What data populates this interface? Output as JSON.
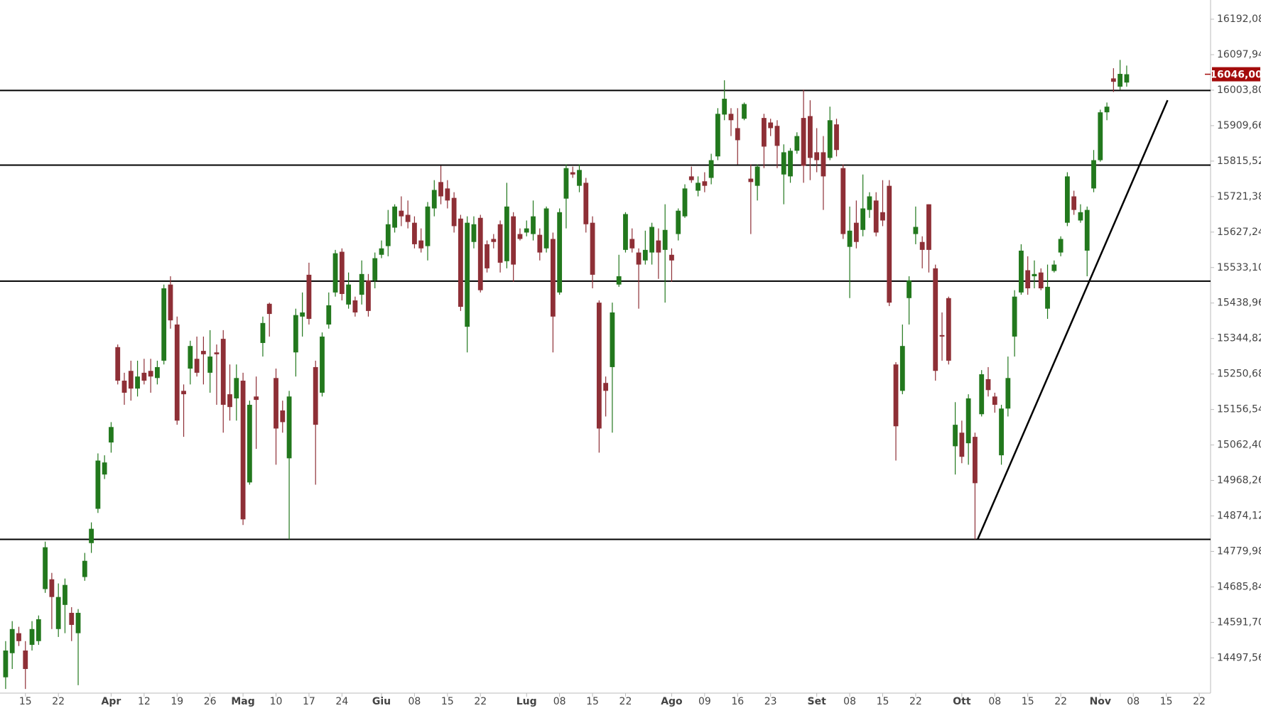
{
  "chart_data": {
    "type": "candlestick",
    "categories": [
      null,
      null,
      null,
      "15",
      null,
      null,
      null,
      null,
      "22",
      null,
      null,
      null,
      null,
      null,
      null,
      null,
      "Apr",
      null,
      null,
      null,
      null,
      "12",
      null,
      null,
      null,
      null,
      "19",
      null,
      null,
      null,
      null,
      "26",
      null,
      null,
      null,
      null,
      "Mag",
      null,
      null,
      null,
      null,
      "10",
      null,
      null,
      null,
      null,
      "17",
      null,
      null,
      null,
      null,
      "24",
      null,
      null,
      null,
      null,
      null,
      "Giu",
      null,
      null,
      null,
      null,
      "08",
      null,
      null,
      null,
      null,
      "15",
      null,
      null,
      null,
      null,
      "22",
      null,
      null,
      null,
      null,
      null,
      null,
      "Lug",
      null,
      null,
      null,
      null,
      "08",
      null,
      null,
      null,
      null,
      "15",
      null,
      null,
      null,
      null,
      "22",
      null,
      null,
      null,
      null,
      null,
      null,
      "Ago",
      null,
      null,
      null,
      null,
      "09",
      null,
      null,
      null,
      null,
      "16",
      null,
      null,
      null,
      null,
      "23",
      null,
      null,
      null,
      null,
      null,
      null,
      "Set",
      null,
      null,
      null,
      null,
      "08",
      null,
      null,
      null,
      null,
      "15",
      null,
      null,
      null,
      null,
      "22",
      null,
      null,
      null,
      null,
      null,
      null,
      "Ott",
      null,
      null,
      null,
      null,
      "08",
      null,
      null,
      null,
      null,
      "15",
      null,
      null,
      null,
      null,
      "22",
      null,
      null,
      null,
      null,
      null,
      "Nov",
      null,
      null,
      null,
      null,
      "08",
      null,
      null,
      null,
      null,
      "15",
      null,
      null,
      null,
      null,
      "22"
    ],
    "open": [
      14446,
      14510,
      14563,
      14517,
      14532,
      14542,
      14680,
      14706,
      14574,
      14638,
      14617,
      14563,
      14712,
      14802,
      14893,
      14984,
      15069,
      15322,
      15233,
      15259,
      15212,
      15254,
      15259,
      15240,
      15286,
      15488,
      15382,
      15206,
      15265,
      15291,
      15312,
      15254,
      15308,
      15344,
      15197,
      15186,
      15233,
      14963,
      15191,
      15333,
      15437,
      15240,
      15154,
      15027,
      15308,
      15403,
      15514,
      15269,
      15201,
      15382,
      15467,
      15575,
      15435,
      15446,
      15461,
      15499,
      15499,
      15567,
      15590,
      15639,
      15684,
      15673,
      15652,
      15605,
      15590,
      15690,
      15760,
      15743,
      15718,
      15663,
      15376,
      15601,
      15665,
      15595,
      15609,
      15648,
      15550,
      15669,
      15622,
      15626,
      15622,
      15620,
      15584,
      15609,
      15467,
      15716,
      15786,
      15750,
      15758,
      15652,
      15440,
      15227,
      15269,
      15488,
      15580,
      15609,
      15573,
      15552,
      15573,
      15605,
      15580,
      15567,
      15622,
      15669,
      15775,
      15737,
      15762,
      15771,
      15828,
      15939,
      15941,
      15903,
      15928,
      15769,
      15750,
      15930,
      15918,
      15909,
      15780,
      15775,
      15843,
      15930,
      15935,
      15839,
      15839,
      15824,
      15913,
      15797,
      15588,
      15652,
      15633,
      15686,
      15711,
      15680,
      15750,
      15276,
      15206,
      15452,
      15622,
      15601,
      15701,
      15531,
      15354,
      15452,
      15059,
      15095,
      15067,
      15084,
      15144,
      15237,
      15191,
      15035,
      15159,
      15350,
      15467,
      15526,
      15510,
      15520,
      15424,
      15524,
      15573,
      15652,
      15722,
      15658,
      15578,
      15743,
      15818,
      15945,
      16035,
      16013,
      16024,
      null,
      null,
      null,
      null,
      null,
      null,
      null,
      null,
      null,
      null,
      null
    ],
    "high": [
      14542,
      14595,
      14580,
      14542,
      14595,
      14610,
      14806,
      14723,
      14695,
      14708,
      14632,
      14627,
      14776,
      14857,
      15040,
      15035,
      15123,
      15329,
      15254,
      15286,
      15286,
      15291,
      15291,
      15286,
      15488,
      15510,
      15403,
      15223,
      15339,
      15350,
      15350,
      15367,
      15329,
      15367,
      15276,
      15276,
      15254,
      15180,
      15244,
      15403,
      15440,
      15265,
      15180,
      15206,
      15424,
      15467,
      15546,
      15286,
      15361,
      15467,
      15580,
      15584,
      15520,
      15456,
      15552,
      15516,
      15573,
      15605,
      15686,
      15701,
      15722,
      15711,
      15669,
      15637,
      15707,
      15765,
      15803,
      15765,
      15733,
      15673,
      15669,
      15669,
      15673,
      15605,
      15622,
      15658,
      15758,
      15680,
      15637,
      15658,
      15711,
      15637,
      15695,
      15626,
      15690,
      15807,
      15801,
      15807,
      15771,
      15669,
      15446,
      15244,
      15440,
      15567,
      15680,
      15637,
      15584,
      15631,
      15652,
      15637,
      15701,
      15584,
      15690,
      15754,
      15801,
      15775,
      15786,
      15835,
      15956,
      16030,
      15956,
      15956,
      15971,
      15807,
      15807,
      15941,
      15928,
      15924,
      15860,
      15850,
      15892,
      16005,
      15977,
      15903,
      15882,
      15960,
      15928,
      15807,
      15695,
      15711,
      15780,
      15733,
      15733,
      15765,
      15765,
      15282,
      15382,
      15510,
      15695,
      15616,
      15701,
      15541,
      15414,
      15456,
      15176,
      15127,
      15197,
      15095,
      15261,
      15269,
      15201,
      15169,
      15297,
      15473,
      15595,
      15563,
      15552,
      15531,
      15541,
      15552,
      15616,
      15786,
      15737,
      15701,
      15695,
      15845,
      15952,
      15971,
      16062,
      16084,
      16069,
      null,
      null,
      null,
      null,
      null,
      null,
      null,
      null,
      null,
      null,
      null
    ],
    "low": [
      14415,
      14468,
      14529,
      14415,
      14517,
      14532,
      14670,
      14574,
      14553,
      14563,
      14542,
      14425,
      14702,
      14776,
      14882,
      14972,
      15042,
      15223,
      15169,
      15180,
      15191,
      15223,
      15201,
      15223,
      15276,
      15371,
      15116,
      15084,
      15223,
      15244,
      15223,
      15201,
      15169,
      15095,
      15127,
      15127,
      14850,
      14957,
      15052,
      15297,
      15350,
      15010,
      15095,
      14812,
      15244,
      15350,
      15382,
      14957,
      15191,
      15371,
      15456,
      15446,
      15424,
      15403,
      15435,
      15403,
      15478,
      15558,
      15563,
      15626,
      15643,
      15637,
      15584,
      15573,
      15552,
      15669,
      15701,
      15690,
      15626,
      15418,
      15308,
      15584,
      15467,
      15520,
      15584,
      15520,
      15531,
      15495,
      15605,
      15616,
      15605,
      15552,
      15573,
      15308,
      15461,
      15637,
      15771,
      15733,
      15626,
      15478,
      15042,
      15138,
      15095,
      15482,
      15573,
      15573,
      15424,
      15541,
      15541,
      15503,
      15440,
      15495,
      15605,
      15665,
      15758,
      15722,
      15733,
      15754,
      15818,
      15924,
      15882,
      15807,
      15924,
      15622,
      15711,
      15797,
      15882,
      15797,
      15701,
      15758,
      15835,
      15758,
      15765,
      15786,
      15686,
      15818,
      15828,
      15609,
      15452,
      15584,
      15616,
      15665,
      15616,
      15643,
      15431,
      15021,
      15197,
      15382,
      15595,
      15531,
      15520,
      15233,
      15286,
      15276,
      14984,
      15014,
      15010,
      14812,
      15138,
      15191,
      15148,
      15010,
      15138,
      15297,
      15461,
      15461,
      15478,
      15473,
      15397,
      15520,
      15563,
      15643,
      15673,
      15652,
      15510,
      15733,
      15814,
      15924,
      15999,
      16005,
      16013,
      null,
      null,
      null,
      null,
      null,
      null,
      null,
      null,
      null,
      null,
      null
    ],
    "close": [
      14517,
      14574,
      14542,
      14468,
      14574,
      14600,
      14791,
      14659,
      14659,
      14691,
      14585,
      14617,
      14755,
      14840,
      15021,
      15016,
      15110,
      15233,
      15201,
      15212,
      15244,
      15233,
      15244,
      15269,
      15478,
      15393,
      15127,
      15197,
      15325,
      15254,
      15303,
      15297,
      15303,
      15169,
      15163,
      15240,
      14865,
      15169,
      15182,
      15386,
      15410,
      15106,
      15123,
      15191,
      15407,
      15414,
      15397,
      15116,
      15350,
      15433,
      15571,
      15463,
      15488,
      15414,
      15516,
      15418,
      15558,
      15584,
      15648,
      15695,
      15669,
      15654,
      15595,
      15584,
      15695,
      15739,
      15722,
      15711,
      15643,
      15429,
      15652,
      15648,
      15473,
      15531,
      15601,
      15546,
      15695,
      15541,
      15609,
      15637,
      15669,
      15573,
      15690,
      15403,
      15680,
      15797,
      15780,
      15792,
      15648,
      15514,
      15106,
      15206,
      15414,
      15510,
      15675,
      15584,
      15541,
      15580,
      15641,
      15573,
      15633,
      15552,
      15684,
      15743,
      15765,
      15758,
      15750,
      15818,
      15941,
      15981,
      15924,
      15871,
      15967,
      15760,
      15801,
      15854,
      15903,
      15856,
      15839,
      15843,
      15882,
      15803,
      15824,
      15818,
      15775,
      15924,
      15845,
      15622,
      15631,
      15601,
      15690,
      15722,
      15626,
      15658,
      15440,
      15112,
      15325,
      15499,
      15641,
      15580,
      15580,
      15259,
      15350,
      15286,
      15116,
      15031,
      15186,
      14961,
      15250,
      15208,
      15169,
      15159,
      15240,
      15456,
      15578,
      15478,
      15516,
      15478,
      15482,
      15541,
      15609,
      15775,
      15686,
      15680,
      15686,
      15818,
      15945,
      15960,
      16026,
      16047,
      16046,
      null,
      null,
      null,
      null,
      null,
      null,
      null,
      null,
      null,
      null,
      null
    ],
    "up_color": "#22781d",
    "down_color": "#8e2f36",
    "ylim": [
      14404,
      16243
    ],
    "yticks": [
      {
        "value": 16192.08,
        "label": "16192,08"
      },
      {
        "value": 16097.94,
        "label": "16097,94"
      },
      {
        "value": 16003.8,
        "label": "16003,80"
      },
      {
        "value": 15909.66,
        "label": "15909,66"
      },
      {
        "value": 15815.52,
        "label": "15815,52"
      },
      {
        "value": 15721.38,
        "label": "15721,38"
      },
      {
        "value": 15627.24,
        "label": "15627,24"
      },
      {
        "value": 15533.1,
        "label": "15533,10"
      },
      {
        "value": 15438.96,
        "label": "15438,96"
      },
      {
        "value": 15344.82,
        "label": "15344,82"
      },
      {
        "value": 15250.68,
        "label": "15250,68"
      },
      {
        "value": 15156.54,
        "label": "15156,54"
      },
      {
        "value": 15062.4,
        "label": "15062,40"
      },
      {
        "value": 14968.26,
        "label": "14968,26"
      },
      {
        "value": 14874.12,
        "label": "14874,12"
      },
      {
        "value": 14779.98,
        "label": "14779,98"
      },
      {
        "value": 14685.84,
        "label": "14685,84"
      },
      {
        "value": 14591.7,
        "label": "14591,70"
      },
      {
        "value": 14497.56,
        "label": "14497,56"
      }
    ],
    "levels": [
      16003,
      15805,
      15497,
      14812
    ],
    "trendline": {
      "x": [
        147.4,
        176.2
      ],
      "y": [
        14812,
        15977
      ]
    },
    "last_price": {
      "value": 16046,
      "label": "16046,00"
    }
  }
}
